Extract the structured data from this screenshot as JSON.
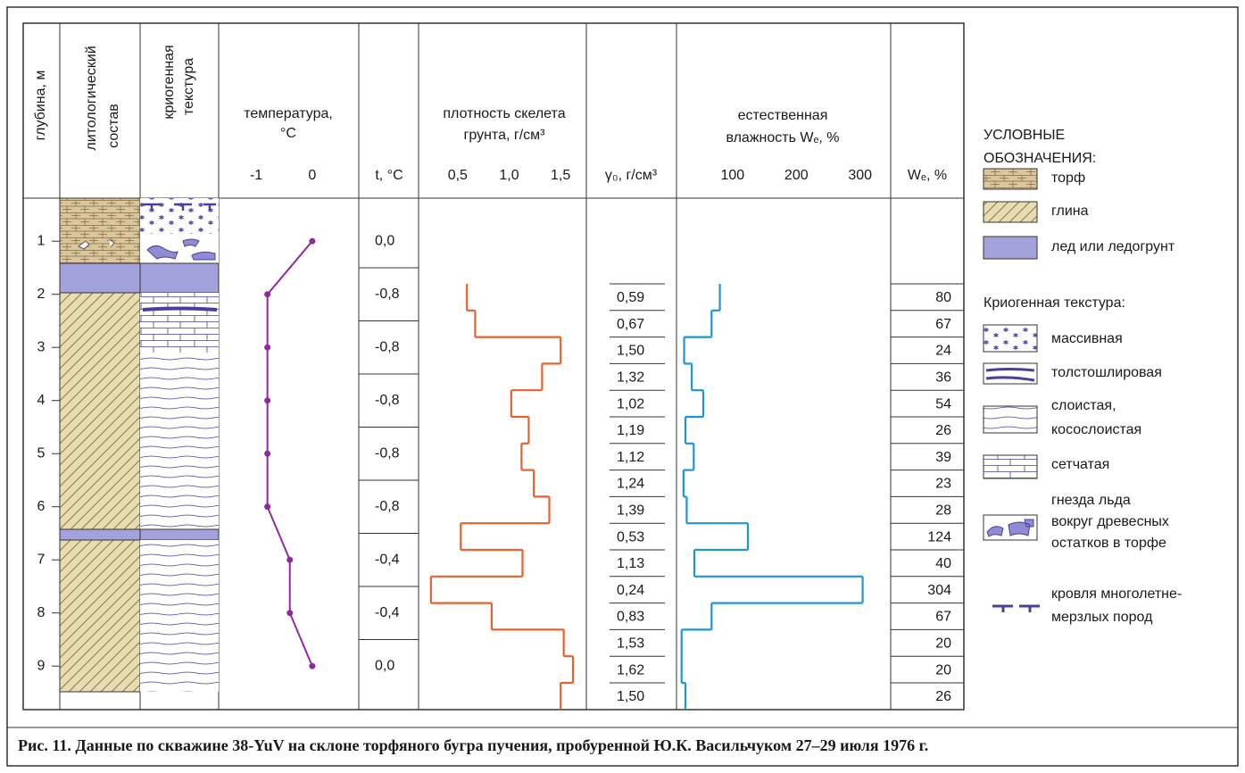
{
  "chart_data": {
    "type": "log",
    "caption": "Рис. 11. Данные по скважине 38-YuV на склоне торфяного бугра пучения, пробуренной Ю.К. Васильчуком 27–29 июля 1976 г.",
    "y_label": "глубина, м",
    "ylim": [
      0.19,
      9.82
    ],
    "yticks": [
      1,
      2,
      3,
      4,
      5,
      6,
      7,
      8,
      9
    ],
    "lithology_label": [
      "литологический",
      "состав"
    ],
    "texture_label": [
      "криогенная",
      "текстура"
    ],
    "temperature": {
      "type": "line",
      "title": [
        "температура,",
        "°С"
      ],
      "column_title": "t, °С",
      "color": "#8e2a9e",
      "xlim": [
        -1.67,
        0.83
      ],
      "xticks": [
        -1,
        0
      ],
      "y": [
        1,
        2,
        3,
        4,
        5,
        6,
        7,
        8,
        9
      ],
      "values": [
        0,
        -0.8,
        -0.8,
        -0.8,
        -0.8,
        -0.8,
        -0.4,
        -0.4,
        0
      ],
      "value_labels": [
        "0,0",
        "-0,8",
        "-0,8",
        "-0,8",
        "-0,8",
        "-0,8",
        "-0,4",
        "-0,4",
        "0,0"
      ]
    },
    "density": {
      "type": "step",
      "title": [
        "плотность скелета",
        "грунта, г/см³"
      ],
      "column_title": "γ₀, г/см³",
      "color": "#e8602c",
      "xlim": [
        0.12,
        1.75
      ],
      "xticks": [
        {
          "value": 0.5,
          "label": "0,5"
        },
        {
          "value": 1,
          "label": "1,0"
        },
        {
          "value": 1.5,
          "label": "1,5"
        }
      ],
      "values": [
        0.59,
        0.67,
        1.5,
        1.32,
        1.02,
        1.19,
        1.12,
        1.24,
        1.39,
        0.53,
        1.13,
        0.24,
        0.83,
        1.53,
        1.62,
        1.5
      ],
      "value_labels": [
        "0,59",
        "0,67",
        "1,50",
        "1,32",
        "1,02",
        "1,19",
        "1,12",
        "1,24",
        "1,39",
        "0,53",
        "1,13",
        "0,24",
        "0,83",
        "1,53",
        "1,62",
        "1,50"
      ]
    },
    "moisture": {
      "type": "step",
      "title": [
        "естественная",
        "влажность Wₑ, %"
      ],
      "column_title": "Wₑ, %",
      "color": "#1e96d2",
      "xlim": [
        12,
        348
      ],
      "xticks": [
        100,
        200,
        300
      ],
      "values": [
        80,
        67,
        24,
        36,
        54,
        26,
        39,
        23,
        28,
        124,
        40,
        304,
        67,
        20,
        20,
        26
      ]
    },
    "legend": {
      "title": [
        "УСЛОВНЫЕ",
        "ОБОЗНАЧЕНИЯ:"
      ],
      "items": [
        [
          "торф"
        ],
        [
          "глина"
        ],
        [
          "лед или ледогрунт"
        ]
      ],
      "texture_title": "Криогенная текстура:",
      "texture_items": [
        [
          "массивная"
        ],
        [
          "толстошлировая"
        ],
        [
          "слоистая,",
          "косослоистая"
        ],
        [
          "сетчатая"
        ],
        [
          "гнезда льда",
          "вокруг древесных",
          "остатков в торфе"
        ],
        [
          "кровля многолетне-",
          "мерзлых пород"
        ]
      ]
    }
  }
}
